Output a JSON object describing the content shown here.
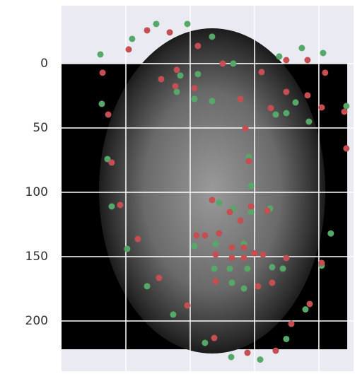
{
  "chart_data": {
    "type": "scatter",
    "xlim": [
      0,
      227
    ],
    "ylim": [
      239,
      -45
    ],
    "xticks": [
      50,
      100,
      150,
      200
    ],
    "yticks": [
      0,
      50,
      100,
      150,
      200
    ],
    "grid": true,
    "series": [
      {
        "color": "#55a868",
        "x": [
          30.2,
          54.9,
          73.6,
          97.8,
          117,
          133.5,
          169.2,
          186.8,
          203.3,
          31.3,
          35.7,
          39,
          51.1,
          66.5,
          86.8,
          111.5,
          131.9,
          154.4,
          174.7,
          189.6,
          202.2,
          209.3,
          221.4,
          92.3,
          106,
          89.6,
          103.3,
          117,
          145.6,
          147.3,
          147.3,
          122.5,
          133.5,
          162.1,
          103.3,
          119.8,
          141.8,
          118.7,
          130.8,
          144.5,
          141.8,
          132.4,
          163.7,
          172,
          174.7,
          166.5,
          181.9,
          192.3
        ],
        "values": [
          -7.1,
          -19.2,
          -30.8,
          -30.8,
          -20.9,
          0,
          -5.5,
          -12.1,
          -8.2,
          31.3,
          74.2,
          111,
          144,
          173,
          195,
          217,
          228,
          230,
          214,
          191,
          157,
          132,
          33,
          9.3,
          8.2,
          22,
          27.5,
          29.1,
          72.5,
          95,
          115.4,
          108.2,
          112.6,
          112.6,
          141.8,
          140.1,
          140.1,
          159.3,
          159.3,
          159.3,
          174.7,
          170.3,
          158.2,
          159.3,
          38.5,
          39.6,
          30.2,
          45.1
        ]
      },
      {
        "color": "#c44e52",
        "x": [
          31.9,
          36.3,
          39,
          45.6,
          59.3,
          75.8,
          97.8,
          118.7,
          144.5,
          166.5,
          178.6,
          192.9,
          202.2,
          219.8,
          221.4,
          52.2,
          66.5,
          84.1,
          106,
          125.3,
          155.5,
          174.7,
          191.2,
          204.9,
          77.5,
          89.6,
          88.5,
          103.3,
          139,
          142.9,
          145.6,
          162.6,
          174.7,
          191.2,
          202.2,
          117,
          130.8,
          139,
          147.3,
          159.9,
          104.9,
          111.5,
          122.5,
          132.4,
          141.8,
          150,
          156.6,
          174.7,
          119.8,
          132.4,
          141.8,
          119.8,
          152.7,
          163.7
        ],
        "values": [
          7.1,
          39.6,
          76.9,
          109.9,
          136.3,
          166.5,
          187.9,
          213.2,
          224.7,
          223.1,
          202.2,
          186.8,
          154.9,
          37.4,
          65.9,
          -11,
          -25.8,
          -24.2,
          -13.7,
          0,
          6.6,
          -2.7,
          -2.7,
          7.1,
          12.1,
          4.9,
          17.6,
          19.2,
          27.5,
          50.5,
          75.8,
          34.6,
          22,
          24.7,
          34.1,
          106,
          115.4,
          122,
          111,
          114.3,
          133.5,
          133.5,
          131.9,
          142.9,
          142.9,
          147.3,
          148.4,
          151.1,
          148.4,
          151.1,
          151.1,
          169.2,
          173,
          170.3
        ]
      }
    ]
  }
}
